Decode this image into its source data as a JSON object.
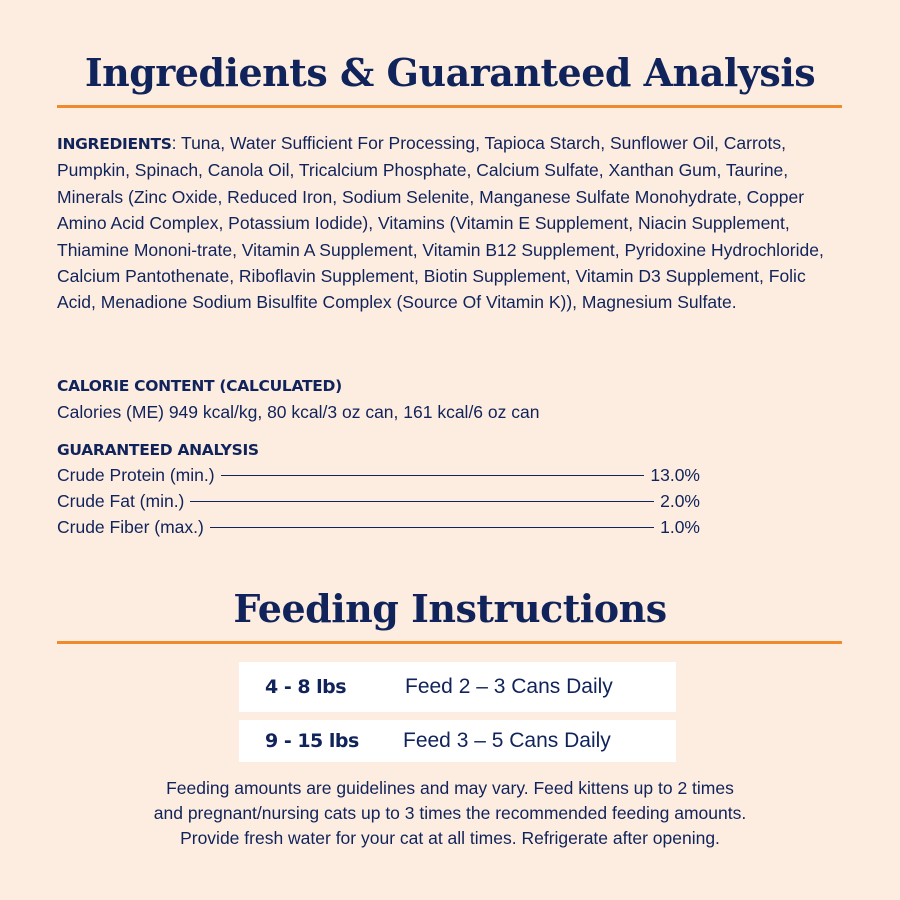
{
  "title": "Ingredients & Guaranteed Analysis",
  "ingredients": {
    "label": "INGREDIENTS",
    "text": ": Tuna, Water Sufficient For Processing, Tapioca Starch, Sunflower Oil, Carrots, Pumpkin, Spinach, Canola Oil, Tricalcium Phosphate, Calcium Sulfate, Xanthan Gum, Taurine, Minerals (Zinc Oxide, Reduced Iron, Sodium Selenite, Manganese Sulfate Monohydrate, Copper Amino Acid Complex, Potassium Iodide), Vitamins (Vitamin E Supplement, Niacin Supplement, Thiamine Mononi-trate, Vitamin A Supplement, Vitamin B12 Supplement, Pyridoxine Hydrochloride, Calcium Pantothenate, Riboflavin Supplement, Biotin Supplement, Vitamin D3 Supplement, Folic Acid, Menadione Sodium Bisulfite Complex (Source Of Vitamin K)), Magnesium Sulfate."
  },
  "calorie": {
    "label": "CALORIE CONTENT (CALCULATED)",
    "text": "Calories (ME) 949 kcal/kg, 80 kcal/3 oz can, 161 kcal/6 oz can"
  },
  "analysis": {
    "label": "GUARANTEED ANALYSIS",
    "rows": [
      {
        "name": "Crude Protein (min.)",
        "value": "13.0%"
      },
      {
        "name": "Crude Fat (min.)",
        "value": "2.0%"
      },
      {
        "name": "Crude Fiber (max.)",
        "value": "1.0%"
      }
    ]
  },
  "feeding": {
    "title": "Feeding Instructions",
    "rows": [
      {
        "weight": "4 - 8 lbs",
        "amount": "Feed 2 – 3 Cans Daily"
      },
      {
        "weight": "9 - 15 lbs",
        "amount": "Feed 3 –  5 Cans Daily"
      }
    ],
    "note": [
      "Feeding amounts are guidelines and may vary. Feed kittens up to 2 times",
      "and pregnant/nursing cats up to 3 times the recommended feeding amounts.",
      "Provide fresh water for your cat at all times. Refrigerate after opening."
    ]
  },
  "colors": {
    "background": "#fdede1",
    "navy": "#10235a",
    "accent": "#f08a2b"
  }
}
